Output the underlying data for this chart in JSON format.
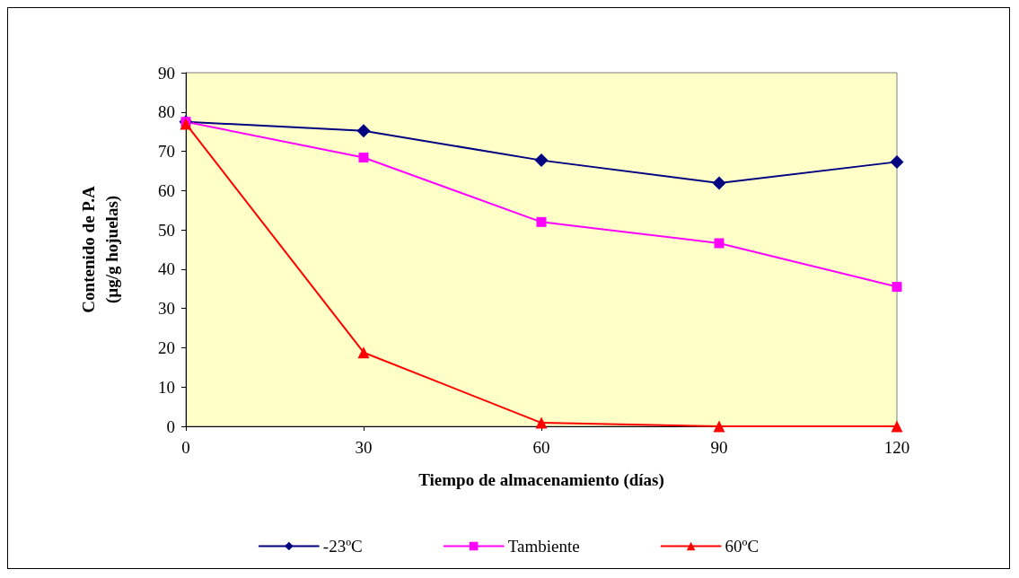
{
  "chart_data": {
    "type": "line",
    "xlabel": "Tiempo de almacenamiento (días)",
    "ylabel": "Contenido de P.A\n(µg/g hojuelas)",
    "x": [
      0,
      30,
      60,
      90,
      120
    ],
    "series": [
      {
        "name": "-23ºC",
        "color": "#000080",
        "marker": "diamond",
        "values": [
          77.5,
          75.2,
          67.7,
          61.9,
          67.3
        ]
      },
      {
        "name": "Tambiente",
        "color": "#ff00ff",
        "marker": "square",
        "values": [
          77.5,
          68.4,
          52,
          46.6,
          35.5
        ]
      },
      {
        "name": "60ºC",
        "color": "#ff0000",
        "marker": "triangle",
        "values": [
          77,
          18.8,
          0.9,
          0,
          0
        ]
      }
    ],
    "xlim": [
      0,
      120
    ],
    "xticks": [
      0,
      30,
      60,
      90,
      120
    ],
    "ylim": [
      0,
      90
    ],
    "yticks": [
      0,
      10,
      20,
      30,
      40,
      50,
      60,
      70,
      80,
      90
    ],
    "grid": false,
    "legend": "bottom",
    "line_style": "solid"
  }
}
